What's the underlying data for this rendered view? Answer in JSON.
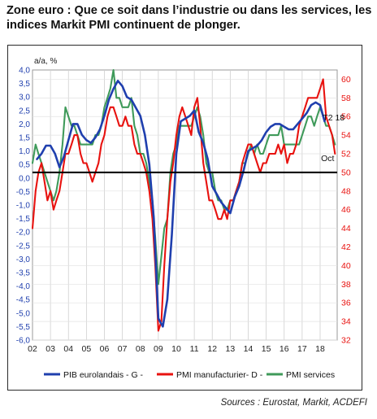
{
  "title": "Zone euro : Que ce soit dans l’industrie ou dans les services, les indices Markit PMI continuent de plonger.",
  "source": "Sources : Eurostat, Markit, ACDEFI",
  "colors": {
    "gdp": "#1f3fae",
    "manuf": "#e8120f",
    "services": "#3f9a5a",
    "left_axis": "#1f3fae",
    "right_axis": "#e8120f"
  },
  "chart_data": {
    "type": "line",
    "ylabel": "a/a, %",
    "x_ticks": [
      "02",
      "03",
      "04",
      "05",
      "06",
      "07",
      "08",
      "09",
      "10",
      "11",
      "12",
      "13",
      "14",
      "15",
      "16",
      "17",
      "18"
    ],
    "xlim": [
      2002,
      2018.95
    ],
    "left_axis": {
      "ylim": [
        -6.0,
        4.0
      ],
      "tick_labels": [
        "4,0",
        "3,5",
        "3,0",
        "2,5",
        "2,0",
        "1,5",
        "1,0",
        "0,5",
        "0,0",
        "-0,5",
        "-1,0",
        "-1,5",
        "-2,0",
        "-2,5",
        "-3,0",
        "-3,5",
        "-4,0",
        "-4,5",
        "-5,0",
        "-5,5",
        "-6,0"
      ]
    },
    "right_axis": {
      "ylim": [
        32,
        61
      ],
      "tick_labels": [
        "60",
        "58",
        "56",
        "54",
        "52",
        "50",
        "48",
        "46",
        "44",
        "42",
        "40",
        "38",
        "36",
        "34",
        "32"
      ]
    },
    "reference_line_right": 50,
    "annotations": [
      "T2 18",
      "Oct"
    ],
    "legend": [
      "PIB eurolandais - G -",
      "PMI manufacturier- D -",
      "PMI services"
    ],
    "series": [
      {
        "name": "PIB eurolandais - G -",
        "axis": "left",
        "x": [
          2002.25,
          2002.5,
          2002.75,
          2003.0,
          2003.25,
          2003.5,
          2003.75,
          2004.0,
          2004.25,
          2004.5,
          2004.75,
          2005.0,
          2005.25,
          2005.5,
          2005.75,
          2006.0,
          2006.25,
          2006.5,
          2006.75,
          2007.0,
          2007.25,
          2007.5,
          2007.75,
          2008.0,
          2008.25,
          2008.5,
          2008.75,
          2009.0,
          2009.25,
          2009.5,
          2009.75,
          2010.0,
          2010.25,
          2010.5,
          2010.75,
          2011.0,
          2011.25,
          2011.5,
          2011.75,
          2012.0,
          2012.25,
          2012.5,
          2012.75,
          2013.0,
          2013.25,
          2013.5,
          2013.75,
          2014.0,
          2014.25,
          2014.5,
          2014.75,
          2015.0,
          2015.25,
          2015.5,
          2015.75,
          2016.0,
          2016.25,
          2016.5,
          2016.75,
          2017.0,
          2017.25,
          2017.5,
          2017.75,
          2018.0,
          2018.25
        ],
        "values": [
          0.7,
          0.9,
          1.2,
          1.2,
          0.9,
          0.4,
          0.8,
          1.4,
          2.0,
          2.0,
          1.6,
          1.4,
          1.3,
          1.5,
          1.8,
          2.3,
          2.9,
          3.3,
          3.6,
          3.4,
          3.0,
          2.9,
          2.6,
          2.3,
          1.6,
          0.5,
          -1.5,
          -5.2,
          -5.5,
          -4.5,
          -2.1,
          0.9,
          2.1,
          2.2,
          2.3,
          2.5,
          1.7,
          1.3,
          0.7,
          -0.3,
          -0.6,
          -0.9,
          -1.1,
          -1.3,
          -0.7,
          -0.3,
          0.3,
          1.0,
          1.1,
          1.2,
          1.4,
          1.7,
          1.9,
          2.0,
          2.0,
          1.9,
          1.8,
          1.8,
          2.0,
          2.2,
          2.4,
          2.7,
          2.8,
          2.7,
          2.1
        ]
      },
      {
        "name": "PMI manufacturier- D -",
        "axis": "right",
        "x": [
          2002.0,
          2002.17,
          2002.33,
          2002.5,
          2002.67,
          2002.83,
          2003.0,
          2003.17,
          2003.33,
          2003.5,
          2003.67,
          2003.83,
          2004.0,
          2004.17,
          2004.33,
          2004.5,
          2004.67,
          2004.83,
          2005.0,
          2005.17,
          2005.33,
          2005.5,
          2005.67,
          2005.83,
          2006.0,
          2006.17,
          2006.33,
          2006.5,
          2006.67,
          2006.83,
          2007.0,
          2007.17,
          2007.33,
          2007.5,
          2007.67,
          2007.83,
          2008.0,
          2008.17,
          2008.33,
          2008.5,
          2008.67,
          2008.83,
          2009.0,
          2009.17,
          2009.33,
          2009.5,
          2009.67,
          2009.83,
          2010.0,
          2010.17,
          2010.33,
          2010.5,
          2010.67,
          2010.83,
          2011.0,
          2011.17,
          2011.33,
          2011.5,
          2011.67,
          2011.83,
          2012.0,
          2012.17,
          2012.33,
          2012.5,
          2012.67,
          2012.83,
          2013.0,
          2013.17,
          2013.33,
          2013.5,
          2013.67,
          2013.83,
          2014.0,
          2014.17,
          2014.33,
          2014.5,
          2014.67,
          2014.83,
          2015.0,
          2015.17,
          2015.33,
          2015.5,
          2015.67,
          2015.83,
          2016.0,
          2016.17,
          2016.33,
          2016.5,
          2016.67,
          2016.83,
          2017.0,
          2017.17,
          2017.33,
          2017.5,
          2017.67,
          2017.83,
          2018.0,
          2018.17,
          2018.33,
          2018.5,
          2018.67,
          2018.83
        ],
        "values": [
          44,
          48,
          50,
          51,
          49,
          47,
          48,
          46,
          47,
          48,
          50,
          52,
          52,
          53,
          54,
          54,
          52,
          51,
          51,
          50,
          49,
          50,
          51,
          53,
          54,
          56,
          57,
          57,
          56,
          55,
          55,
          56,
          55,
          55,
          53,
          52,
          52,
          51,
          50,
          48,
          45,
          40,
          33,
          34,
          40,
          45,
          49,
          51,
          54,
          56,
          57,
          56,
          55,
          54,
          57,
          58,
          55,
          51,
          49,
          47,
          47,
          46,
          45,
          45,
          46,
          45,
          47,
          47,
          48,
          49,
          51,
          52,
          53,
          53,
          52,
          51,
          50,
          51,
          51,
          52,
          52,
          52,
          53,
          52,
          53,
          51,
          52,
          52,
          53,
          55,
          56,
          57,
          58,
          58,
          58,
          58,
          59,
          60,
          56,
          55,
          54,
          52
        ]
      },
      {
        "name": "PMI services",
        "axis": "right",
        "x": [
          2002.0,
          2002.17,
          2002.33,
          2002.5,
          2002.67,
          2002.83,
          2003.0,
          2003.17,
          2003.33,
          2003.5,
          2003.67,
          2003.83,
          2004.0,
          2004.17,
          2004.33,
          2004.5,
          2004.67,
          2004.83,
          2005.0,
          2005.17,
          2005.33,
          2005.5,
          2005.67,
          2005.83,
          2006.0,
          2006.17,
          2006.33,
          2006.5,
          2006.67,
          2006.83,
          2007.0,
          2007.17,
          2007.33,
          2007.5,
          2007.67,
          2007.83,
          2008.0,
          2008.17,
          2008.33,
          2008.5,
          2008.67,
          2008.83,
          2009.0,
          2009.17,
          2009.33,
          2009.5,
          2009.67,
          2009.83,
          2010.0,
          2010.17,
          2010.33,
          2010.5,
          2010.67,
          2010.83,
          2011.0,
          2011.17,
          2011.33,
          2011.5,
          2011.67,
          2011.83,
          2012.0,
          2012.17,
          2012.33,
          2012.5,
          2012.67,
          2012.83,
          2013.0,
          2013.17,
          2013.33,
          2013.5,
          2013.67,
          2013.83,
          2014.0,
          2014.17,
          2014.33,
          2014.5,
          2014.67,
          2014.83,
          2015.0,
          2015.17,
          2015.33,
          2015.5,
          2015.67,
          2015.83,
          2016.0,
          2016.17,
          2016.33,
          2016.5,
          2016.67,
          2016.83,
          2017.0,
          2017.17,
          2017.33,
          2017.5,
          2017.67,
          2017.83,
          2018.0,
          2018.17,
          2018.33,
          2018.5,
          2018.67,
          2018.83
        ],
        "values": [
          51,
          53,
          52,
          51,
          50,
          49,
          48,
          47,
          48,
          50,
          53,
          57,
          56,
          55,
          55,
          54,
          53,
          53,
          53,
          53,
          53,
          54,
          54,
          55,
          57,
          58,
          59,
          61,
          58,
          58,
          57,
          57,
          57,
          58,
          55,
          54,
          52,
          52,
          51,
          49,
          47,
          43,
          38,
          41,
          44,
          45,
          50,
          52,
          53,
          55,
          55,
          55,
          55,
          55,
          56,
          57,
          56,
          54,
          51,
          50,
          50,
          48,
          47,
          47,
          46,
          46,
          47,
          47,
          48,
          49,
          51,
          51,
          52,
          53,
          52,
          53,
          52,
          52,
          53,
          54,
          54,
          54,
          54,
          55,
          53,
          53,
          53,
          53,
          53,
          53,
          54,
          55,
          56,
          56,
          55,
          56,
          57,
          56,
          55,
          55,
          54,
          53
        ]
      }
    ]
  }
}
